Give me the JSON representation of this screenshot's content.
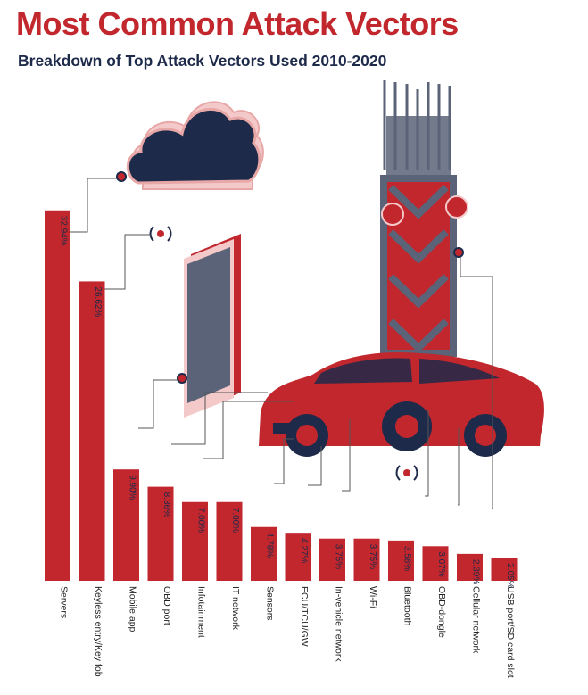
{
  "title": "Most Common Attack Vectors",
  "subtitle": "Breakdown of Top Attack Vectors Used 2010-2020",
  "colors": {
    "bar": "#c1272d",
    "title": "#c1272d",
    "subtitle": "#1e2a4a",
    "navy": "#1e2a4a",
    "steel": "#5a6378",
    "line": "#555555"
  },
  "chart_data": {
    "type": "bar",
    "orientation": "vertical",
    "categories": [
      "Servers",
      "Keyless entry/Key fob",
      "Mobile app",
      "OBD port",
      "Infotainment",
      "IT network",
      "Sensors",
      "ECU/TCU/GW",
      "In-vehicle network",
      "Wi-Fi",
      "Bluetooth",
      "OBD-dongle",
      "Cellular network",
      "USB port/SD card slot"
    ],
    "values": [
      32.94,
      26.62,
      9.9,
      8.36,
      7.0,
      7.0,
      4.78,
      4.27,
      3.75,
      3.75,
      3.58,
      3.07,
      2.39,
      2.05
    ],
    "value_labels": [
      "32.94%",
      "26.62%",
      "9.90%",
      "8.36%",
      "7.00%",
      "7.00%",
      "4.78%",
      "4.27%",
      "3.75%",
      "3.75%",
      "3.58%",
      "3.07%",
      "2.39%",
      "2.05%"
    ],
    "unit": "%",
    "title": "Most Common Attack Vectors",
    "subtitle": "Breakdown of Top Attack Vectors Used 2010-2020",
    "xlabel": "",
    "ylabel": "",
    "ylim": [
      0,
      33
    ],
    "grid": false,
    "legend": "none"
  },
  "illustrations": [
    "cloud-icon",
    "smartphone-icon",
    "signal-icon",
    "cell-tower-icon",
    "car-icon"
  ]
}
